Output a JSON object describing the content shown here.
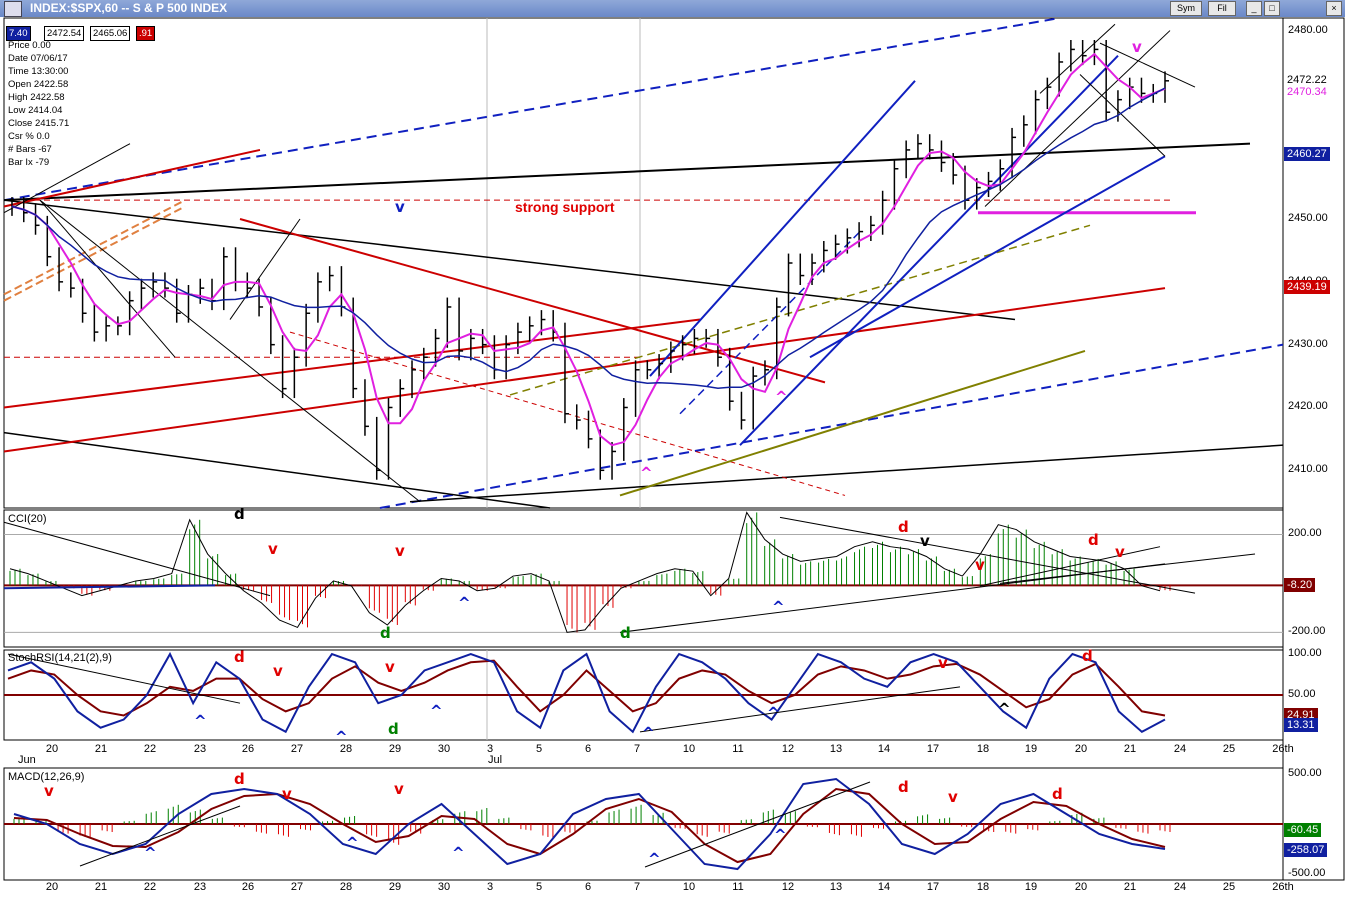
{
  "window": {
    "title": "INDEX:$SPX,60 -- S & P 500 INDEX",
    "buttons": [
      "Sym",
      "Fil"
    ]
  },
  "header_values": {
    "first": "7.40",
    "second": "2472.54",
    "third": "2465.06",
    "fourth": ".91"
  },
  "bar_info": [
    {
      "label": "Price",
      "value": "0.00"
    },
    {
      "label": "Date",
      "value": "07/06/17"
    },
    {
      "label": "Time",
      "value": "13:30:00"
    },
    {
      "label": "Open",
      "value": "2422.58"
    },
    {
      "label": "High",
      "value": "2422.58"
    },
    {
      "label": "Low",
      "value": "2414.04"
    },
    {
      "label": "Close",
      "value": "2415.71"
    },
    {
      "label": "Csr %",
      "value": "0.0"
    },
    {
      "label": "# Bars",
      "value": "-67"
    },
    {
      "label": "Bar Ix",
      "value": "-79"
    }
  ],
  "price_text": {
    "support": "strong support"
  },
  "indicator_names": {
    "cci": "CCI(20)",
    "stochrsi": "StochRSI(14,21(2),9)",
    "macd": "MACD(12,26,9)"
  },
  "chart_data": [
    {
      "type": "line",
      "title": "INDEX:$SPX,60 -- S & P 500 INDEX",
      "ylim": [
        2404,
        2482
      ],
      "y_ticks": [
        "2480.00",
        "2450.00",
        "2440.00",
        "2430.00",
        "2420.00",
        "2410.00"
      ],
      "x_labels": [
        "20",
        "21",
        "22",
        "23",
        "26",
        "27",
        "28",
        "29",
        "30",
        "3",
        "5",
        "6",
        "7",
        "10",
        "11",
        "12",
        "13",
        "14",
        "17",
        "18",
        "19",
        "20",
        "21",
        "24",
        "25",
        "26th"
      ],
      "x_month_labels": [
        "Jun",
        "Jul"
      ],
      "price_boxes": [
        {
          "value": "2472.22",
          "bg": "#ffffff",
          "fg": "#000000"
        },
        {
          "value": "2470.34",
          "bg": "#ffffff",
          "fg": "#e020e0"
        },
        {
          "value": "2460.27",
          "bg": "#1020a0",
          "fg": "#ffffff"
        },
        {
          "value": "2439.19",
          "bg": "#cc0000",
          "fg": "#ffffff"
        }
      ],
      "close_path": [
        [
          0,
          2452
        ],
        [
          1,
          2451
        ],
        [
          2,
          2449
        ],
        [
          3,
          2444
        ],
        [
          4,
          2440
        ],
        [
          5,
          2439
        ],
        [
          6,
          2435
        ],
        [
          7,
          2432
        ],
        [
          8,
          2433
        ],
        [
          9,
          2433
        ],
        [
          10,
          2437
        ],
        [
          11,
          2439
        ],
        [
          12,
          2440
        ],
        [
          13,
          2439
        ],
        [
          14,
          2435
        ],
        [
          15,
          2438
        ],
        [
          16,
          2439
        ],
        [
          17,
          2437
        ],
        [
          18,
          2444
        ],
        [
          19,
          2440
        ],
        [
          20,
          2439
        ],
        [
          21,
          2436
        ],
        [
          22,
          2430
        ],
        [
          23,
          2423
        ],
        [
          24,
          2428
        ],
        [
          25,
          2435
        ],
        [
          26,
          2440
        ],
        [
          27,
          2441
        ],
        [
          28,
          2436
        ],
        [
          29,
          2423
        ],
        [
          30,
          2417
        ],
        [
          31,
          2410
        ],
        [
          32,
          2420
        ],
        [
          33,
          2423
        ],
        [
          34,
          2426
        ],
        [
          35,
          2428
        ],
        [
          36,
          2431
        ],
        [
          37,
          2436
        ],
        [
          38,
          2429
        ],
        [
          39,
          2431
        ],
        [
          40,
          2430
        ],
        [
          41,
          2426
        ],
        [
          42,
          2430
        ],
        [
          43,
          2432
        ],
        [
          44,
          2433
        ],
        [
          45,
          2434
        ],
        [
          46,
          2432
        ],
        [
          47,
          2419
        ],
        [
          48,
          2418
        ],
        [
          49,
          2415
        ],
        [
          50,
          2410
        ],
        [
          51,
          2413
        ],
        [
          52,
          2420
        ],
        [
          53,
          2426
        ],
        [
          54,
          2426
        ],
        [
          55,
          2427
        ],
        [
          56,
          2429
        ],
        [
          57,
          2430
        ],
        [
          58,
          2431
        ],
        [
          59,
          2431
        ],
        [
          60,
          2428
        ],
        [
          61,
          2421
        ],
        [
          62,
          2418
        ],
        [
          63,
          2425
        ],
        [
          64,
          2426
        ],
        [
          65,
          2436
        ],
        [
          66,
          2443
        ],
        [
          67,
          2441
        ],
        [
          68,
          2443
        ],
        [
          69,
          2445
        ],
        [
          70,
          2446
        ],
        [
          71,
          2447
        ],
        [
          72,
          2448
        ],
        [
          73,
          2449
        ],
        [
          74,
          2453
        ],
        [
          75,
          2458
        ],
        [
          76,
          2461
        ],
        [
          77,
          2462
        ],
        [
          78,
          2461
        ],
        [
          79,
          2459
        ],
        [
          80,
          2457
        ],
        [
          81,
          2453
        ],
        [
          82,
          2455
        ],
        [
          83,
          2456
        ],
        [
          84,
          2458
        ],
        [
          85,
          2463
        ],
        [
          86,
          2465
        ],
        [
          87,
          2469
        ],
        [
          88,
          2471
        ],
        [
          89,
          2475
        ],
        [
          90,
          2477
        ],
        [
          91,
          2476
        ],
        [
          92,
          2477
        ],
        [
          93,
          2467
        ],
        [
          94,
          2469
        ],
        [
          95,
          2471
        ],
        [
          96,
          2470
        ],
        [
          97,
          2470
        ],
        [
          98,
          2472
        ]
      ],
      "mark_labels": [
        {
          "text": "v",
          "color": "#1020c0"
        },
        {
          "text": "^",
          "color": "#e020e0"
        },
        {
          "text": "^",
          "color": "#e020e0"
        },
        {
          "text": "v",
          "color": "#e020e0"
        }
      ]
    },
    {
      "type": "bar",
      "title": "CCI(20)",
      "ylim": [
        -260,
        300
      ],
      "y_ticks": [
        "200.00",
        "-200.00"
      ],
      "current_value": "-8.20",
      "mark_labels": [
        {
          "text": "d",
          "color": "#000000"
        },
        {
          "text": "v",
          "color": "#e00000"
        },
        {
          "text": "v",
          "color": "#e00000"
        },
        {
          "text": "d",
          "color": "#008000"
        },
        {
          "text": "^",
          "color": "#1020c0"
        },
        {
          "text": "d",
          "color": "#008000"
        },
        {
          "text": "^",
          "color": "#1020c0"
        },
        {
          "text": "d",
          "color": "#e00000"
        },
        {
          "text": "v",
          "color": "#000000"
        },
        {
          "text": "v",
          "color": "#e00000"
        },
        {
          "text": "d",
          "color": "#e00000"
        },
        {
          "text": "v",
          "color": "#e00000"
        }
      ]
    },
    {
      "type": "line",
      "title": "StochRSI(14,21(2),9)",
      "ylim": [
        -5,
        105
      ],
      "y_ticks": [
        "100.00",
        "50.00"
      ],
      "current_values": [
        "24.91",
        "13.31"
      ],
      "mark_labels": [
        {
          "text": "d",
          "color": "#e00000"
        },
        {
          "text": "v",
          "color": "#e00000"
        },
        {
          "text": "v",
          "color": "#e00000"
        },
        {
          "text": "^",
          "color": "#1020c0"
        },
        {
          "text": "^",
          "color": "#1020c0"
        },
        {
          "text": "d",
          "color": "#008000"
        },
        {
          "text": "^",
          "color": "#1020c0"
        },
        {
          "text": "^",
          "color": "#1020c0"
        },
        {
          "text": "^",
          "color": "#1020c0"
        },
        {
          "text": "v",
          "color": "#e00000"
        },
        {
          "text": "^",
          "color": "#000000"
        },
        {
          "text": "d",
          "color": "#e00000"
        }
      ]
    },
    {
      "type": "bar",
      "title": "MACD(12,26,9)",
      "ylim": [
        -560,
        560
      ],
      "y_ticks": [
        "500.00",
        "-500.00"
      ],
      "current_values": [
        "-60.45",
        "-258.07"
      ],
      "mark_labels": [
        {
          "text": "v",
          "color": "#e00000"
        },
        {
          "text": "d",
          "color": "#e00000"
        },
        {
          "text": "v",
          "color": "#e00000"
        },
        {
          "text": "v",
          "color": "#e00000"
        },
        {
          "text": "^",
          "color": "#1020c0"
        },
        {
          "text": "^",
          "color": "#1020c0"
        },
        {
          "text": "^",
          "color": "#1020c0"
        },
        {
          "text": "^",
          "color": "#1020c0"
        },
        {
          "text": "^",
          "color": "#1020c0"
        },
        {
          "text": "d",
          "color": "#e00000"
        },
        {
          "text": "v",
          "color": "#e00000"
        },
        {
          "text": "d",
          "color": "#e00000"
        }
      ]
    }
  ]
}
